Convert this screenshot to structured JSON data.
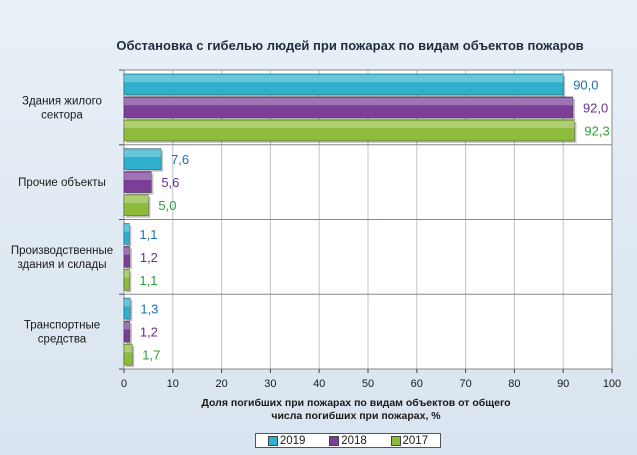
{
  "chart_data": {
    "type": "bar",
    "orientation": "horizontal",
    "title": "Обстановка с гибелью людей при пожарах по видам объектов пожаров",
    "xlabel": [
      "Доля погибших при пожарах по видам объектов от общего",
      "числа погибших при пожарах, %"
    ],
    "categories": [
      [
        "Здания жилого",
        "сектора"
      ],
      [
        "Прочие объекты"
      ],
      [
        "Производственные",
        "здания и склады"
      ],
      [
        "Транспортные",
        "средства"
      ]
    ],
    "xlim": [
      0,
      100
    ],
    "xticks": [
      0,
      10,
      20,
      30,
      40,
      50,
      60,
      70,
      80,
      90,
      100
    ],
    "grid": true,
    "legend_position": "bottom",
    "series": [
      {
        "name": "2019",
        "values": [
          90.0,
          7.6,
          1.1,
          1.3
        ],
        "labels": [
          "90,0",
          "7,6",
          "1,1",
          "1,3"
        ],
        "color": "#2fb0cc",
        "label_color": "#1f6fb0"
      },
      {
        "name": "2018",
        "values": [
          92.0,
          5.6,
          1.2,
          1.2
        ],
        "labels": [
          "92,0",
          "5,6",
          "1,2",
          "1,2"
        ],
        "color": "#7b3f98",
        "label_color": "#6a2f8e"
      },
      {
        "name": "2017",
        "values": [
          92.3,
          5.0,
          1.1,
          1.7
        ],
        "labels": [
          "92,3",
          "5,0",
          "1,1",
          "1,7"
        ],
        "color": "#8dbb3a",
        "label_color": "#2e9e3a"
      }
    ]
  }
}
